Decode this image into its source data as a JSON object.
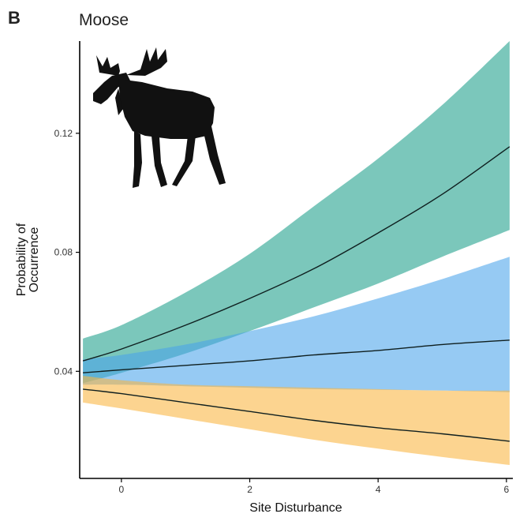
{
  "panel_label": "B",
  "chart_data": {
    "type": "line",
    "title": "Moose",
    "xlabel": "Site Disturbance",
    "ylabel": "Probability of Occurrence",
    "ylabel_lines": [
      "Probability of",
      "Occurrence"
    ],
    "xlim": [
      -0.65,
      6.1
    ],
    "ylim": [
      0.004,
      0.151
    ],
    "xticks": [
      0,
      2,
      4,
      6
    ],
    "yticks": [
      0.04,
      0.08,
      0.12
    ],
    "ytick_labels": [
      "0.04",
      "0.08",
      "0.12"
    ],
    "grid": false,
    "legend": "none",
    "series": [
      {
        "color": "#1b9e89",
        "x": [
          -0.6,
          0,
          1,
          2,
          3,
          4,
          5,
          6.05
        ],
        "y": [
          0.0435,
          0.0475,
          0.0555,
          0.0645,
          0.0745,
          0.0865,
          0.0995,
          0.1155
        ],
        "lower": [
          0.036,
          0.0395,
          0.046,
          0.0535,
          0.0615,
          0.0695,
          0.0785,
          0.0875
        ],
        "upper": [
          0.051,
          0.0555,
          0.0665,
          0.0795,
          0.0955,
          0.1115,
          0.1295,
          0.151
        ]
      },
      {
        "color": "#4aa3ea",
        "x": [
          -0.6,
          0,
          1,
          2,
          3,
          4,
          5,
          6.05
        ],
        "y": [
          0.0395,
          0.0405,
          0.042,
          0.0435,
          0.0455,
          0.047,
          0.049,
          0.0505
        ],
        "lower": [
          0.0355,
          0.0355,
          0.035,
          0.0345,
          0.034,
          0.0338,
          0.0335,
          0.033
        ],
        "upper": [
          0.044,
          0.0455,
          0.049,
          0.0535,
          0.0585,
          0.0645,
          0.071,
          0.0785
        ]
      },
      {
        "color": "#f9b53f",
        "x": [
          -0.6,
          0,
          1,
          2,
          3,
          4,
          5,
          6.05
        ],
        "y": [
          0.034,
          0.0325,
          0.0295,
          0.0265,
          0.0235,
          0.021,
          0.019,
          0.0165
        ],
        "lower": [
          0.0295,
          0.0275,
          0.024,
          0.0205,
          0.017,
          0.014,
          0.0112,
          0.0085
        ],
        "upper": [
          0.0385,
          0.037,
          0.0355,
          0.035,
          0.0345,
          0.034,
          0.0335,
          0.0335
        ]
      }
    ]
  },
  "silhouette": {
    "icon": "moose-silhouette-icon",
    "color": "#111111"
  },
  "colors": {
    "axis": "#000000",
    "line": "#0f1f1f"
  }
}
